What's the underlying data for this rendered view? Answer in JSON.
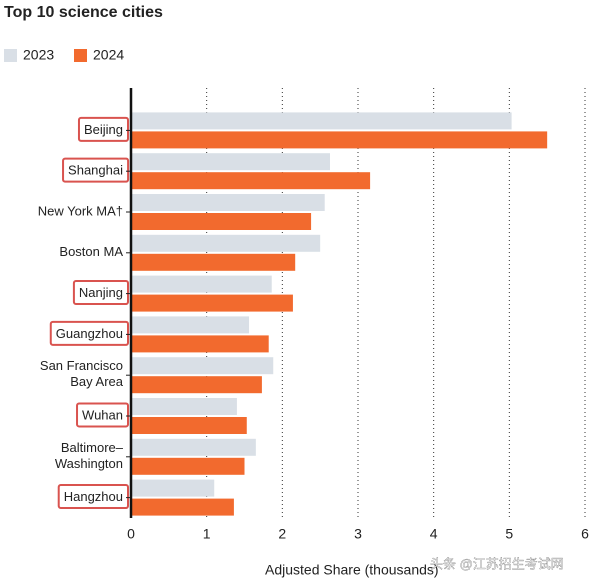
{
  "chart_data": {
    "type": "hbar",
    "title": "Top 10 science cities",
    "categories": [
      "Beijing",
      "Shanghai",
      "New York MA†",
      "Boston MA",
      "Nanjing",
      "Guangzhou",
      "San Francisco\nBay Area",
      "Wuhan",
      "Baltimore–\nWashington",
      "Hangzhou"
    ],
    "highlighted": [
      true,
      true,
      false,
      false,
      true,
      true,
      false,
      true,
      false,
      true
    ],
    "series": [
      {
        "name": "2023",
        "color": "#d9dfe6",
        "values": [
          5.03,
          2.63,
          2.56,
          2.5,
          1.86,
          1.56,
          1.88,
          1.4,
          1.65,
          1.1
        ]
      },
      {
        "name": "2024",
        "color": "#f26a2e",
        "values": [
          5.5,
          3.16,
          2.38,
          2.17,
          2.14,
          1.82,
          1.73,
          1.53,
          1.5,
          1.36
        ]
      }
    ],
    "xlim": [
      0,
      6
    ],
    "xticks": [
      0,
      1,
      2,
      3,
      4,
      5,
      6
    ],
    "grid": true,
    "x_label": "Adjusted Share (thousands)",
    "watermark": "头条 @江苏招生考试网"
  }
}
